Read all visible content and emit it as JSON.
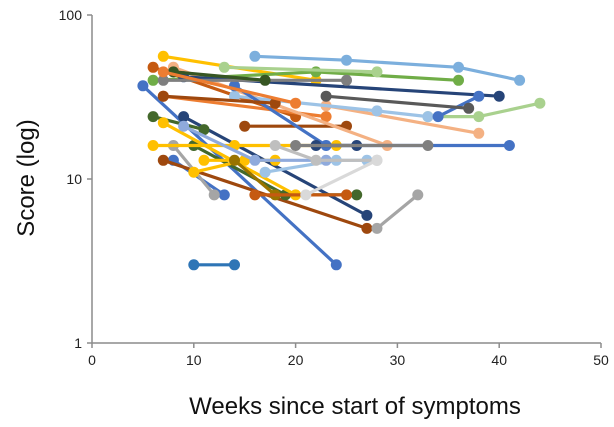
{
  "chart_data": {
    "type": "line",
    "title": "",
    "xlabel": "Weeks since start of symptoms",
    "ylabel": "Score (log)",
    "xlim": [
      0,
      50
    ],
    "ylim": [
      1,
      100
    ],
    "y_scale": "log",
    "grid": false,
    "legend": "none",
    "x_ticks": [
      0,
      10,
      20,
      30,
      40,
      50
    ],
    "y_ticks": [
      1,
      10,
      100
    ],
    "x_tick_labels": [
      "0",
      "10",
      "20",
      "30",
      "40",
      "50"
    ],
    "y_tick_labels": [
      "1",
      "10",
      "100"
    ],
    "series": [
      {
        "color": "#2e75b6",
        "points": [
          [
            10,
            3
          ],
          [
            14,
            3
          ]
        ]
      },
      {
        "color": "#4472c4",
        "points": [
          [
            5,
            37
          ],
          [
            24,
            3
          ]
        ]
      },
      {
        "color": "#4472c4",
        "points": [
          [
            8,
            13
          ],
          [
            13,
            8
          ]
        ]
      },
      {
        "color": "#9e480e",
        "points": [
          [
            7,
            13
          ],
          [
            27,
            5
          ]
        ]
      },
      {
        "color": "#a5a5a5",
        "points": [
          [
            8,
            16
          ],
          [
            12,
            8
          ]
        ]
      },
      {
        "color": "#a5a5a5",
        "points": [
          [
            28,
            5
          ],
          [
            32,
            8
          ]
        ]
      },
      {
        "color": "#264478",
        "points": [
          [
            9,
            24
          ],
          [
            27,
            6
          ]
        ]
      },
      {
        "color": "#43682b",
        "points": [
          [
            6,
            24
          ],
          [
            11,
            20
          ]
        ]
      },
      {
        "color": "#43682b",
        "points": [
          [
            10,
            16
          ],
          [
            19,
            8
          ],
          [
            26,
            8
          ]
        ]
      },
      {
        "color": "#ffc000",
        "points": [
          [
            7,
            22
          ],
          [
            20,
            8
          ]
        ]
      },
      {
        "color": "#ffc000",
        "points": [
          [
            6,
            16
          ],
          [
            14,
            16
          ],
          [
            24,
            16
          ]
        ]
      },
      {
        "color": "#ffc000",
        "points": [
          [
            10,
            11
          ],
          [
            15,
            13
          ]
        ]
      },
      {
        "color": "#ffc000",
        "points": [
          [
            11,
            13
          ],
          [
            18,
            13
          ]
        ]
      },
      {
        "color": "#997300",
        "points": [
          [
            14,
            13
          ],
          [
            18,
            8
          ]
        ]
      },
      {
        "color": "#c55a11",
        "points": [
          [
            6,
            48
          ],
          [
            20,
            24
          ]
        ]
      },
      {
        "color": "#c55a11",
        "points": [
          [
            16,
            8
          ],
          [
            25,
            8
          ]
        ]
      },
      {
        "color": "#9e480e",
        "points": [
          [
            15,
            21
          ],
          [
            25,
            21
          ]
        ]
      },
      {
        "color": "#ed7d31",
        "points": [
          [
            7,
            32
          ],
          [
            23,
            24
          ]
        ]
      },
      {
        "color": "#f4b183",
        "points": [
          [
            8,
            48
          ],
          [
            29,
            16
          ]
        ]
      },
      {
        "color": "#f4b183",
        "points": [
          [
            23,
            28
          ],
          [
            38,
            19
          ]
        ]
      },
      {
        "color": "#ffc000",
        "points": [
          [
            7,
            56
          ],
          [
            22,
            40
          ]
        ]
      },
      {
        "color": "#70ad47",
        "points": [
          [
            6,
            40
          ],
          [
            22,
            45
          ],
          [
            36,
            40
          ]
        ]
      },
      {
        "color": "#a9d18e",
        "points": [
          [
            13,
            48
          ],
          [
            28,
            45
          ]
        ]
      },
      {
        "color": "#a9d18e",
        "points": [
          [
            33,
            24
          ],
          [
            38,
            24
          ],
          [
            44,
            29
          ]
        ]
      },
      {
        "color": "#7cafdd",
        "points": [
          [
            16,
            56
          ],
          [
            25,
            53
          ],
          [
            36,
            48
          ],
          [
            42,
            40
          ]
        ]
      },
      {
        "color": "#9dc3e6",
        "points": [
          [
            17,
            11
          ],
          [
            24,
            13
          ],
          [
            27,
            13
          ]
        ]
      },
      {
        "color": "#9dc3e6",
        "points": [
          [
            14,
            32
          ],
          [
            28,
            26
          ],
          [
            33,
            24
          ]
        ]
      },
      {
        "color": "#8faadc",
        "points": [
          [
            9,
            21
          ],
          [
            16,
            13
          ],
          [
            23,
            13
          ]
        ]
      },
      {
        "color": "#4472c4",
        "points": [
          [
            14,
            37
          ],
          [
            23,
            16
          ],
          [
            41,
            16
          ]
        ]
      },
      {
        "color": "#264478",
        "points": [
          [
            22,
            16
          ],
          [
            26,
            16
          ]
        ]
      },
      {
        "color": "#264478",
        "points": [
          [
            9,
            42
          ],
          [
            40,
            32
          ]
        ]
      },
      {
        "color": "#4472c4",
        "points": [
          [
            34,
            24
          ],
          [
            38,
            32
          ]
        ]
      },
      {
        "color": "#595959",
        "points": [
          [
            23,
            32
          ],
          [
            37,
            27
          ]
        ]
      },
      {
        "color": "#7f7f7f",
        "points": [
          [
            7,
            40
          ],
          [
            25,
            40
          ]
        ]
      },
      {
        "color": "#7f7f7f",
        "points": [
          [
            20,
            16
          ],
          [
            33,
            16
          ]
        ]
      },
      {
        "color": "#bfbfbf",
        "points": [
          [
            18,
            16
          ],
          [
            22,
            13
          ],
          [
            28,
            13
          ]
        ]
      },
      {
        "color": "#d9d9d9",
        "points": [
          [
            21,
            8
          ],
          [
            28,
            13
          ]
        ]
      },
      {
        "color": "#375623",
        "points": [
          [
            8,
            45
          ],
          [
            17,
            40
          ]
        ]
      },
      {
        "color": "#9e480e",
        "points": [
          [
            7,
            32
          ],
          [
            18,
            29
          ]
        ]
      },
      {
        "color": "#ed7d31",
        "points": [
          [
            7,
            45
          ],
          [
            20,
            29
          ]
        ]
      }
    ]
  }
}
